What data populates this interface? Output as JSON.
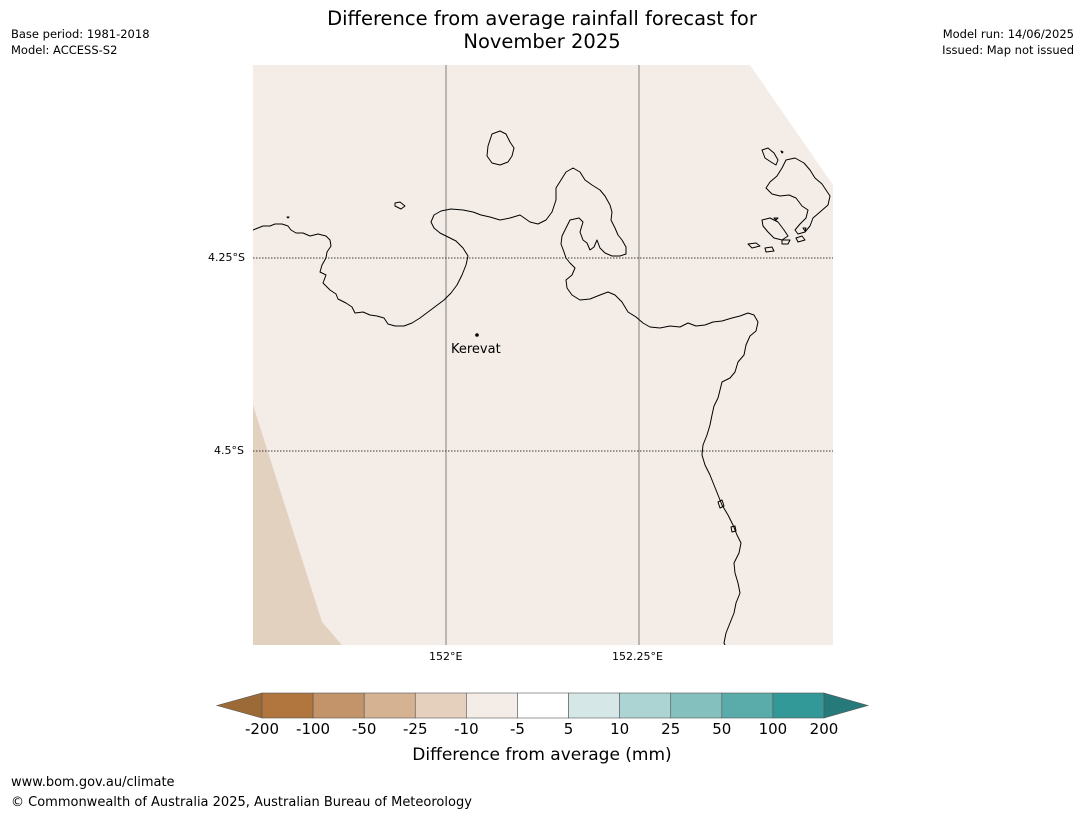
{
  "header": {
    "title_line1": "Difference from average rainfall forecast for",
    "title_line2": "November 2025",
    "base_period": "Base period: 1981-2018",
    "model": "Model: ACCESS-S2",
    "model_run": "Model run: 14/06/2025",
    "issued": "Issued: Map not issued"
  },
  "map": {
    "latitude_labels": [
      "4.25°S",
      "4.5°S"
    ],
    "longitude_labels": [
      "152°E",
      "152.25°E"
    ],
    "places": [
      {
        "name": "Kerevat"
      }
    ],
    "colors": {
      "ocean_land_class": "#f4ede7",
      "dry_class": "#e2d1bf",
      "coastline": "#000000",
      "gridline_lon": "#808080",
      "gridline_lat": "#000000"
    }
  },
  "colorbar": {
    "label": "Difference from average (mm)",
    "ticks": [
      "-200",
      "-100",
      "-50",
      "-25",
      "-10",
      "-5",
      "5",
      "10",
      "25",
      "50",
      "100",
      "200"
    ],
    "colors": [
      "#9c6a36",
      "#b0763e",
      "#c3946a",
      "#d4b292",
      "#e5d0bd",
      "#f4ede7",
      "#ffffff",
      "#d5e8e7",
      "#acd4d3",
      "#84c0bd",
      "#5aacab",
      "#329998",
      "#277a7a"
    ]
  },
  "footer": {
    "url": "www.bom.gov.au/climate",
    "copyright": "© Commonwealth of Australia 2025, Australian Bureau of Meteorology"
  }
}
